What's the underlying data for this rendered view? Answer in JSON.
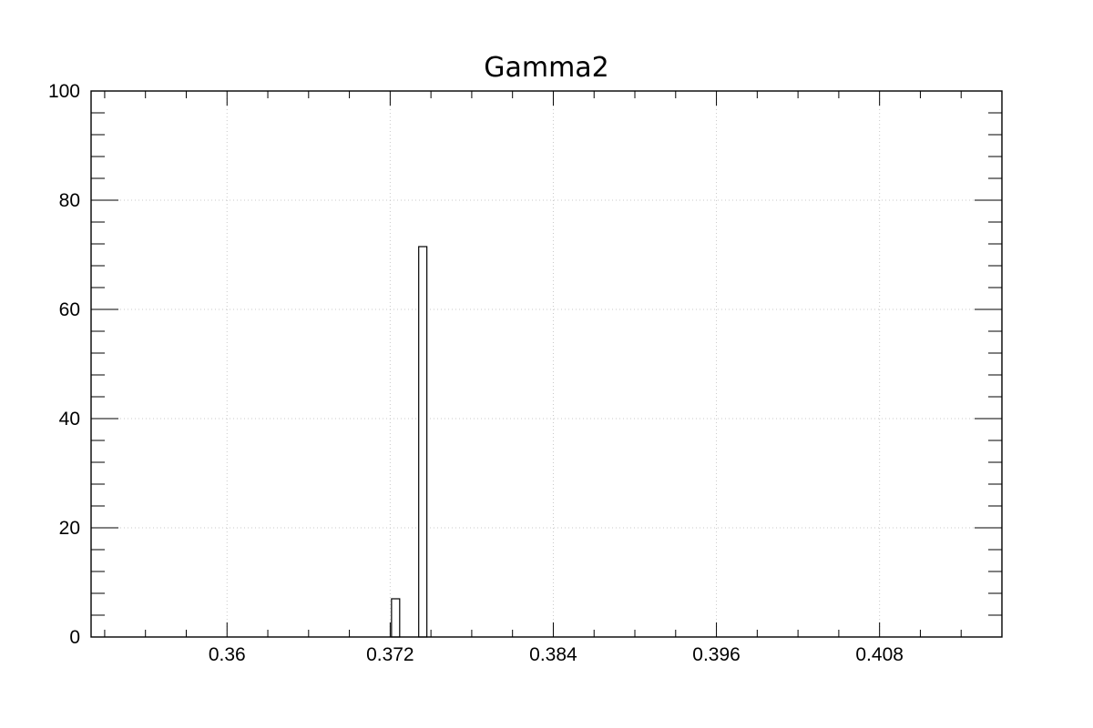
{
  "chart_data": {
    "type": "bar",
    "title": "Gamma2",
    "xlabel": "",
    "ylabel": "",
    "xlim": [
      0.35,
      0.417
    ],
    "ylim": [
      0,
      100
    ],
    "x_ticks": [
      0.36,
      0.372,
      0.384,
      0.396,
      0.408
    ],
    "x_tick_labels": [
      "0.36",
      "0.372",
      "0.384",
      "0.396",
      "0.408"
    ],
    "y_ticks": [
      0,
      20,
      40,
      60,
      80,
      100
    ],
    "y_tick_labels": [
      "0",
      "20",
      "40",
      "60",
      "80",
      "100"
    ],
    "grid": true,
    "bins": [
      {
        "x0": 0.3721,
        "x1": 0.3727,
        "value": 7
      },
      {
        "x0": 0.3741,
        "x1": 0.3747,
        "value": 71.5
      }
    ]
  }
}
